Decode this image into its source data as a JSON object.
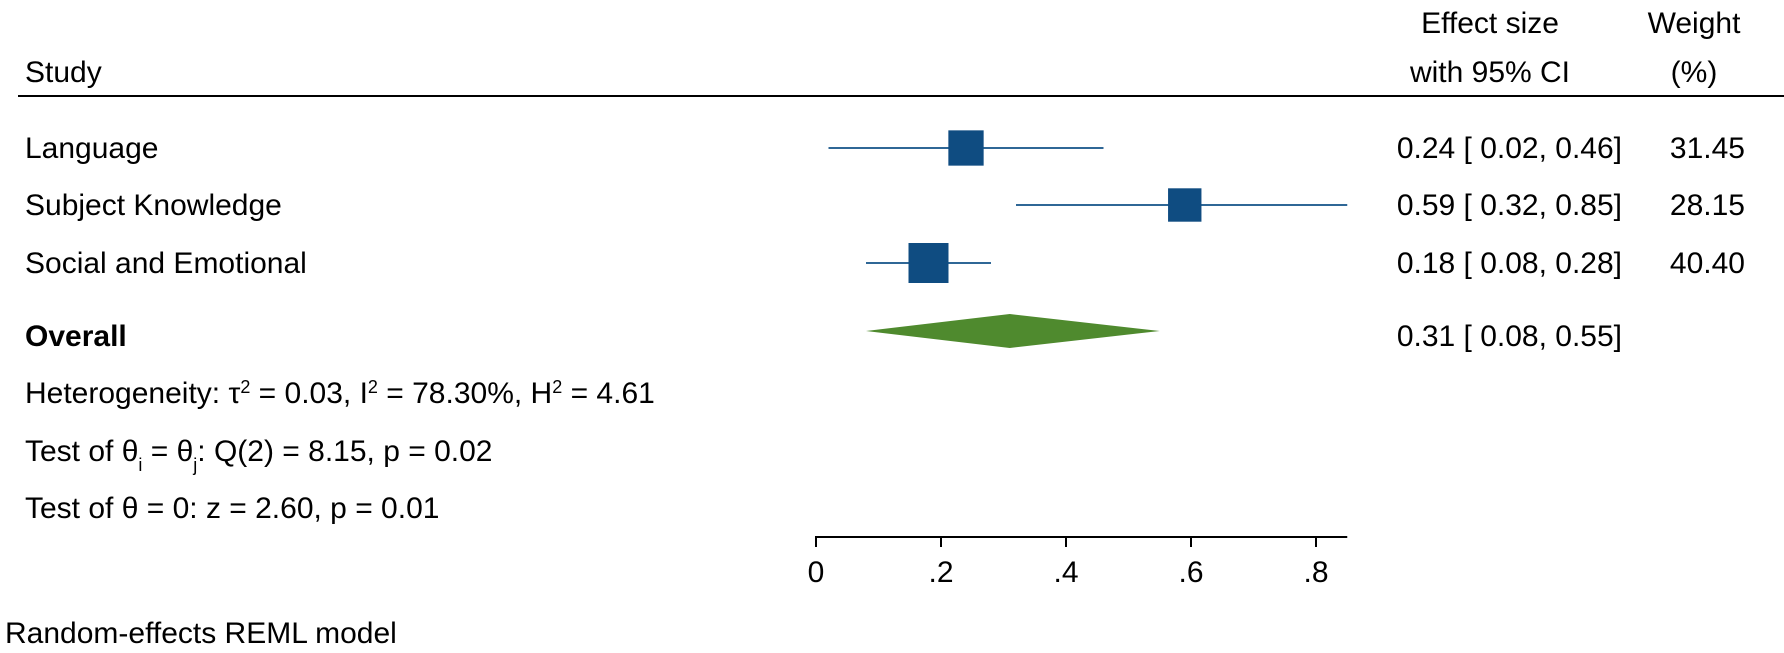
{
  "chart_data": {
    "type": "forest",
    "headers": {
      "study": "Study",
      "effect_line1": "Effect size",
      "effect_line2": "with 95% CI",
      "weight_line1": "Weight",
      "weight_line2": "(%)"
    },
    "studies": [
      {
        "name": "Language",
        "effect": 0.24,
        "ci_low": 0.02,
        "ci_high": 0.46,
        "ci_text": "0.24 [ 0.02,  0.46]",
        "weight": 31.45,
        "weight_text": "31.45"
      },
      {
        "name": "Subject Knowledge",
        "effect": 0.59,
        "ci_low": 0.32,
        "ci_high": 0.85,
        "ci_text": "0.59 [ 0.32,  0.85]",
        "weight": 28.15,
        "weight_text": "28.15"
      },
      {
        "name": "Social and Emotional",
        "effect": 0.18,
        "ci_low": 0.08,
        "ci_high": 0.28,
        "ci_text": "0.18 [ 0.08,  0.28]",
        "weight": 40.4,
        "weight_text": "40.40"
      }
    ],
    "overall": {
      "name": "Overall",
      "effect": 0.31,
      "ci_low": 0.08,
      "ci_high": 0.55,
      "ci_text": "0.31 [ 0.08,  0.55]"
    },
    "stats": {
      "heterogeneity": {
        "prefix": "Heterogeneity: τ",
        "tau_val": " = 0.03, I",
        "i_val": " = 78.30%, H",
        "h_val": " = 4.61",
        "sup": "2"
      },
      "test_ij": {
        "prefix": "Test of θ",
        "sub_i": "i",
        "mid": " = θ",
        "sub_j": "j",
        "suffix": ": Q(2) = 8.15, p = 0.02"
      },
      "test_zero": "Test of θ = 0: z = 2.60, p = 0.01"
    },
    "x_axis": {
      "ticks": [
        0,
        0.2,
        0.4,
        0.6,
        0.8
      ],
      "tick_labels": [
        "0",
        ".2",
        ".4",
        ".6",
        ".8"
      ],
      "range": [
        0,
        0.85
      ]
    },
    "footnote": "Random-effects REML model",
    "colors": {
      "study_marker": "#0f4c81",
      "ci_line": "#2f6796",
      "overall_diamond": "#4f8a2e",
      "rule": "#000000"
    }
  }
}
